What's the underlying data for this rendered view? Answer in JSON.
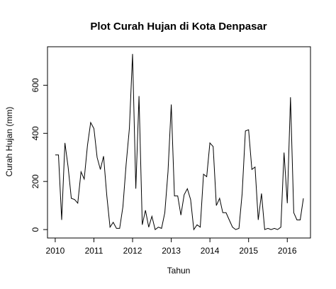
{
  "chart_data": {
    "type": "line",
    "title": "Plot Curah Hujan di Kota Denpasar",
    "xlabel": "Tahun",
    "ylabel": "Curah Hujan (mm)",
    "xlim": [
      2009.8,
      2016.6
    ],
    "ylim": [
      -35,
      760
    ],
    "x_ticks": [
      2010,
      2011,
      2012,
      2013,
      2014,
      2015,
      2016
    ],
    "x_tick_labels": [
      "2010",
      "2011",
      "2012",
      "2013",
      "2014",
      "2015",
      "2016"
    ],
    "y_ticks": [
      0,
      200,
      400,
      600
    ],
    "y_tick_labels": [
      "0",
      "200",
      "400",
      "600"
    ],
    "grid": false,
    "series": [
      {
        "start": 2010.0,
        "step": 0.0833333,
        "values": [
          310,
          310,
          40,
          360,
          260,
          130,
          125,
          110,
          240,
          210,
          350,
          445,
          420,
          300,
          250,
          305,
          140,
          10,
          30,
          5,
          5,
          95,
          270,
          420,
          730,
          170,
          555,
          20,
          80,
          10,
          55,
          0,
          10,
          5,
          70,
          240,
          520,
          140,
          140,
          60,
          145,
          170,
          125,
          0,
          20,
          10,
          230,
          220,
          360,
          345,
          100,
          130,
          70,
          70,
          40,
          10,
          0,
          5,
          150,
          410,
          415,
          250,
          260,
          40,
          150,
          0,
          5,
          0,
          5,
          0,
          10,
          320,
          110,
          550,
          70,
          40,
          40,
          130
        ]
      }
    ]
  }
}
